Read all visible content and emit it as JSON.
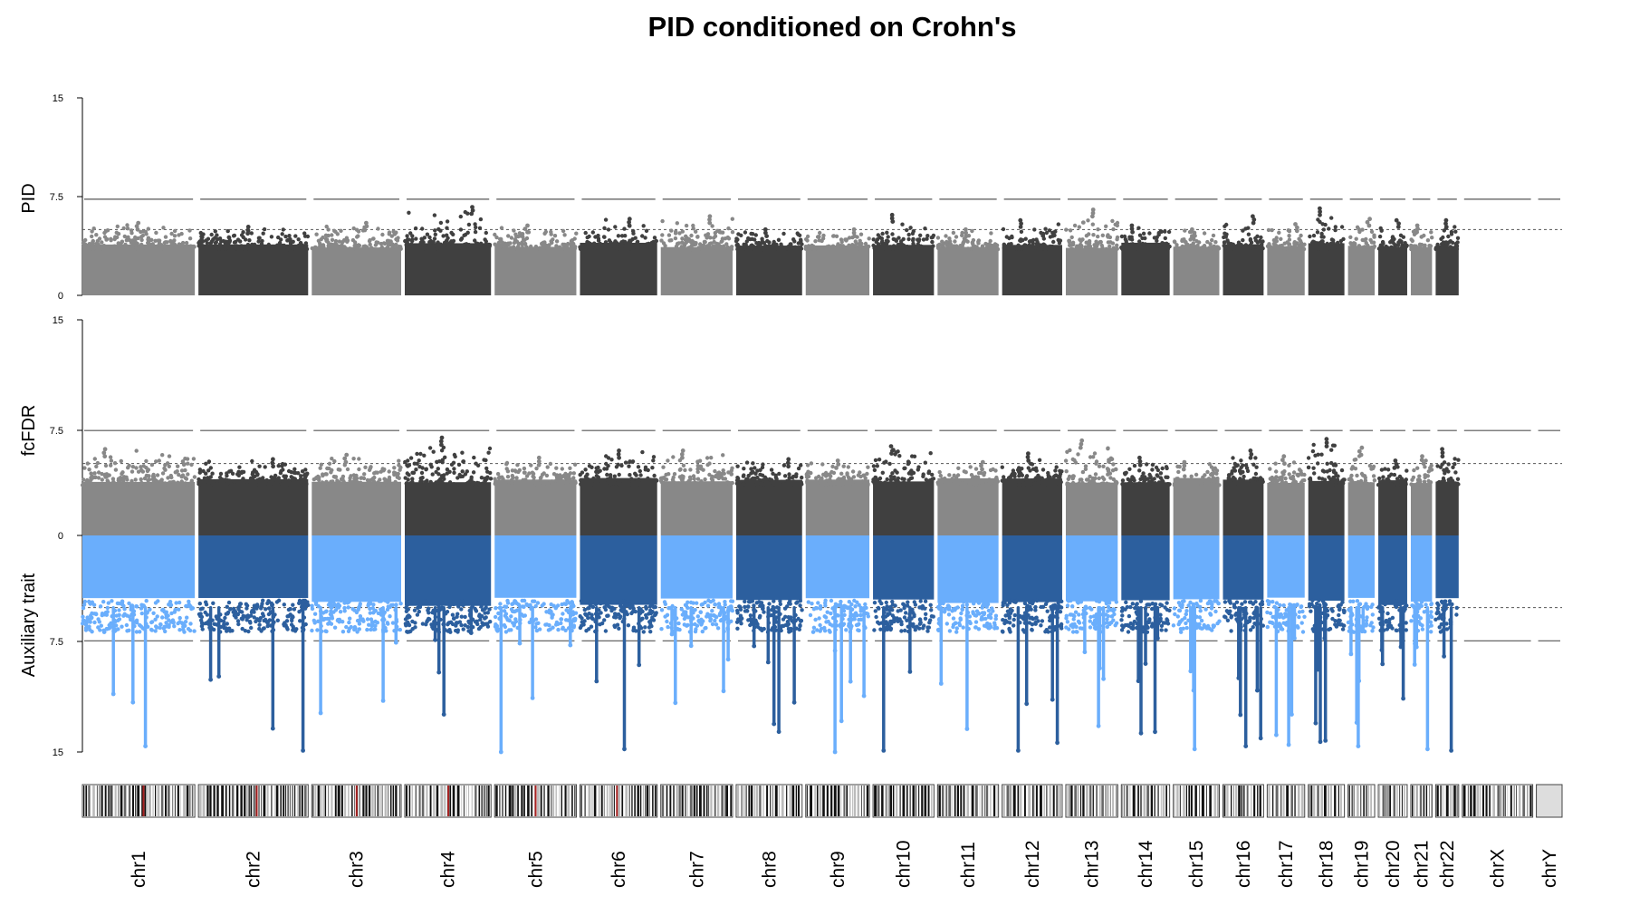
{
  "chart_data": {
    "type": "scatter",
    "title": "PID conditioned on Crohn's",
    "panels": [
      {
        "id": "top",
        "ylabel": "PID",
        "yticks": [
          "15",
          "7.5",
          "0"
        ],
        "ylim": [
          0,
          15
        ],
        "genome_wide_line": 7.3,
        "suggestive_line": 5.0
      },
      {
        "id": "mirrored",
        "ylabel_upper": "fcFDR",
        "ylabel_lower": "Auxiliary trait",
        "yticks_upper": [
          "15",
          "7.5"
        ],
        "ytick_zero": "0",
        "yticks_lower": [
          "7.5",
          "15"
        ],
        "ylim_upper": [
          0,
          15
        ],
        "ylim_lower": [
          0,
          15
        ],
        "genome_wide_line": 7.3,
        "suggestive_line": 5.0
      }
    ],
    "colors": {
      "odd_upper": "#888888",
      "even_upper": "#404040",
      "odd_lower": "#6aaefc",
      "even_lower": "#2c5f9e",
      "line": "#555555"
    },
    "chromosomes": [
      {
        "name": "chr1",
        "len": 249,
        "top_max": 5.5,
        "fc_max": 6.0,
        "aux_max": 14.6
      },
      {
        "name": "chr2",
        "len": 243,
        "top_max": 5.2,
        "fc_max": 5.3,
        "aux_max": 14.9
      },
      {
        "name": "chr3",
        "len": 198,
        "top_max": 5.5,
        "fc_max": 5.6,
        "aux_max": 12.3
      },
      {
        "name": "chr4",
        "len": 191,
        "top_max": 6.7,
        "fc_max": 6.8,
        "aux_max": 12.4
      },
      {
        "name": "chr5",
        "len": 181,
        "top_max": 5.3,
        "fc_max": 5.4,
        "aux_max": 15.0
      },
      {
        "name": "chr6",
        "len": 171,
        "top_max": 5.8,
        "fc_max": 5.9,
        "aux_max": 14.8
      },
      {
        "name": "chr7",
        "len": 159,
        "top_max": 6.0,
        "fc_max": 5.9,
        "aux_max": 11.6
      },
      {
        "name": "chr8",
        "len": 146,
        "top_max": 5.0,
        "fc_max": 5.3,
        "aux_max": 13.6
      },
      {
        "name": "chr9",
        "len": 141,
        "top_max": 5.0,
        "fc_max": 5.2,
        "aux_max": 15.0
      },
      {
        "name": "chr10",
        "len": 135,
        "top_max": 6.1,
        "fc_max": 6.2,
        "aux_max": 14.9
      },
      {
        "name": "chr11",
        "len": 135,
        "top_max": 5.0,
        "fc_max": 5.1,
        "aux_max": 13.4
      },
      {
        "name": "chr12",
        "len": 133,
        "top_max": 5.7,
        "fc_max": 5.7,
        "aux_max": 14.9
      },
      {
        "name": "chr13",
        "len": 115,
        "top_max": 6.5,
        "fc_max": 6.6,
        "aux_max": 13.2
      },
      {
        "name": "chr14",
        "len": 107,
        "top_max": 5.3,
        "fc_max": 5.4,
        "aux_max": 13.7
      },
      {
        "name": "chr15",
        "len": 102,
        "top_max": 5.0,
        "fc_max": 5.1,
        "aux_max": 14.8
      },
      {
        "name": "chr16",
        "len": 90,
        "top_max": 6.0,
        "fc_max": 5.9,
        "aux_max": 14.6
      },
      {
        "name": "chr17",
        "len": 83,
        "top_max": 5.4,
        "fc_max": 5.5,
        "aux_max": 14.5
      },
      {
        "name": "chr18",
        "len": 80,
        "top_max": 6.6,
        "fc_max": 6.7,
        "aux_max": 14.3
      },
      {
        "name": "chr19",
        "len": 59,
        "top_max": 5.8,
        "fc_max": 6.1,
        "aux_max": 14.6
      },
      {
        "name": "chr20",
        "len": 64,
        "top_max": 5.7,
        "fc_max": 5.2,
        "aux_max": 11.3
      },
      {
        "name": "chr21",
        "len": 47,
        "top_max": 5.3,
        "fc_max": 5.5,
        "aux_max": 14.8
      },
      {
        "name": "chr22",
        "len": 51,
        "top_max": 5.7,
        "fc_max": 6.0,
        "aux_max": 14.9
      },
      {
        "name": "chrX",
        "len": 156,
        "top_max": null,
        "fc_max": null,
        "aux_max": null
      },
      {
        "name": "chrY",
        "len": 57,
        "top_max": null,
        "fc_max": null,
        "aux_max": null
      }
    ]
  }
}
